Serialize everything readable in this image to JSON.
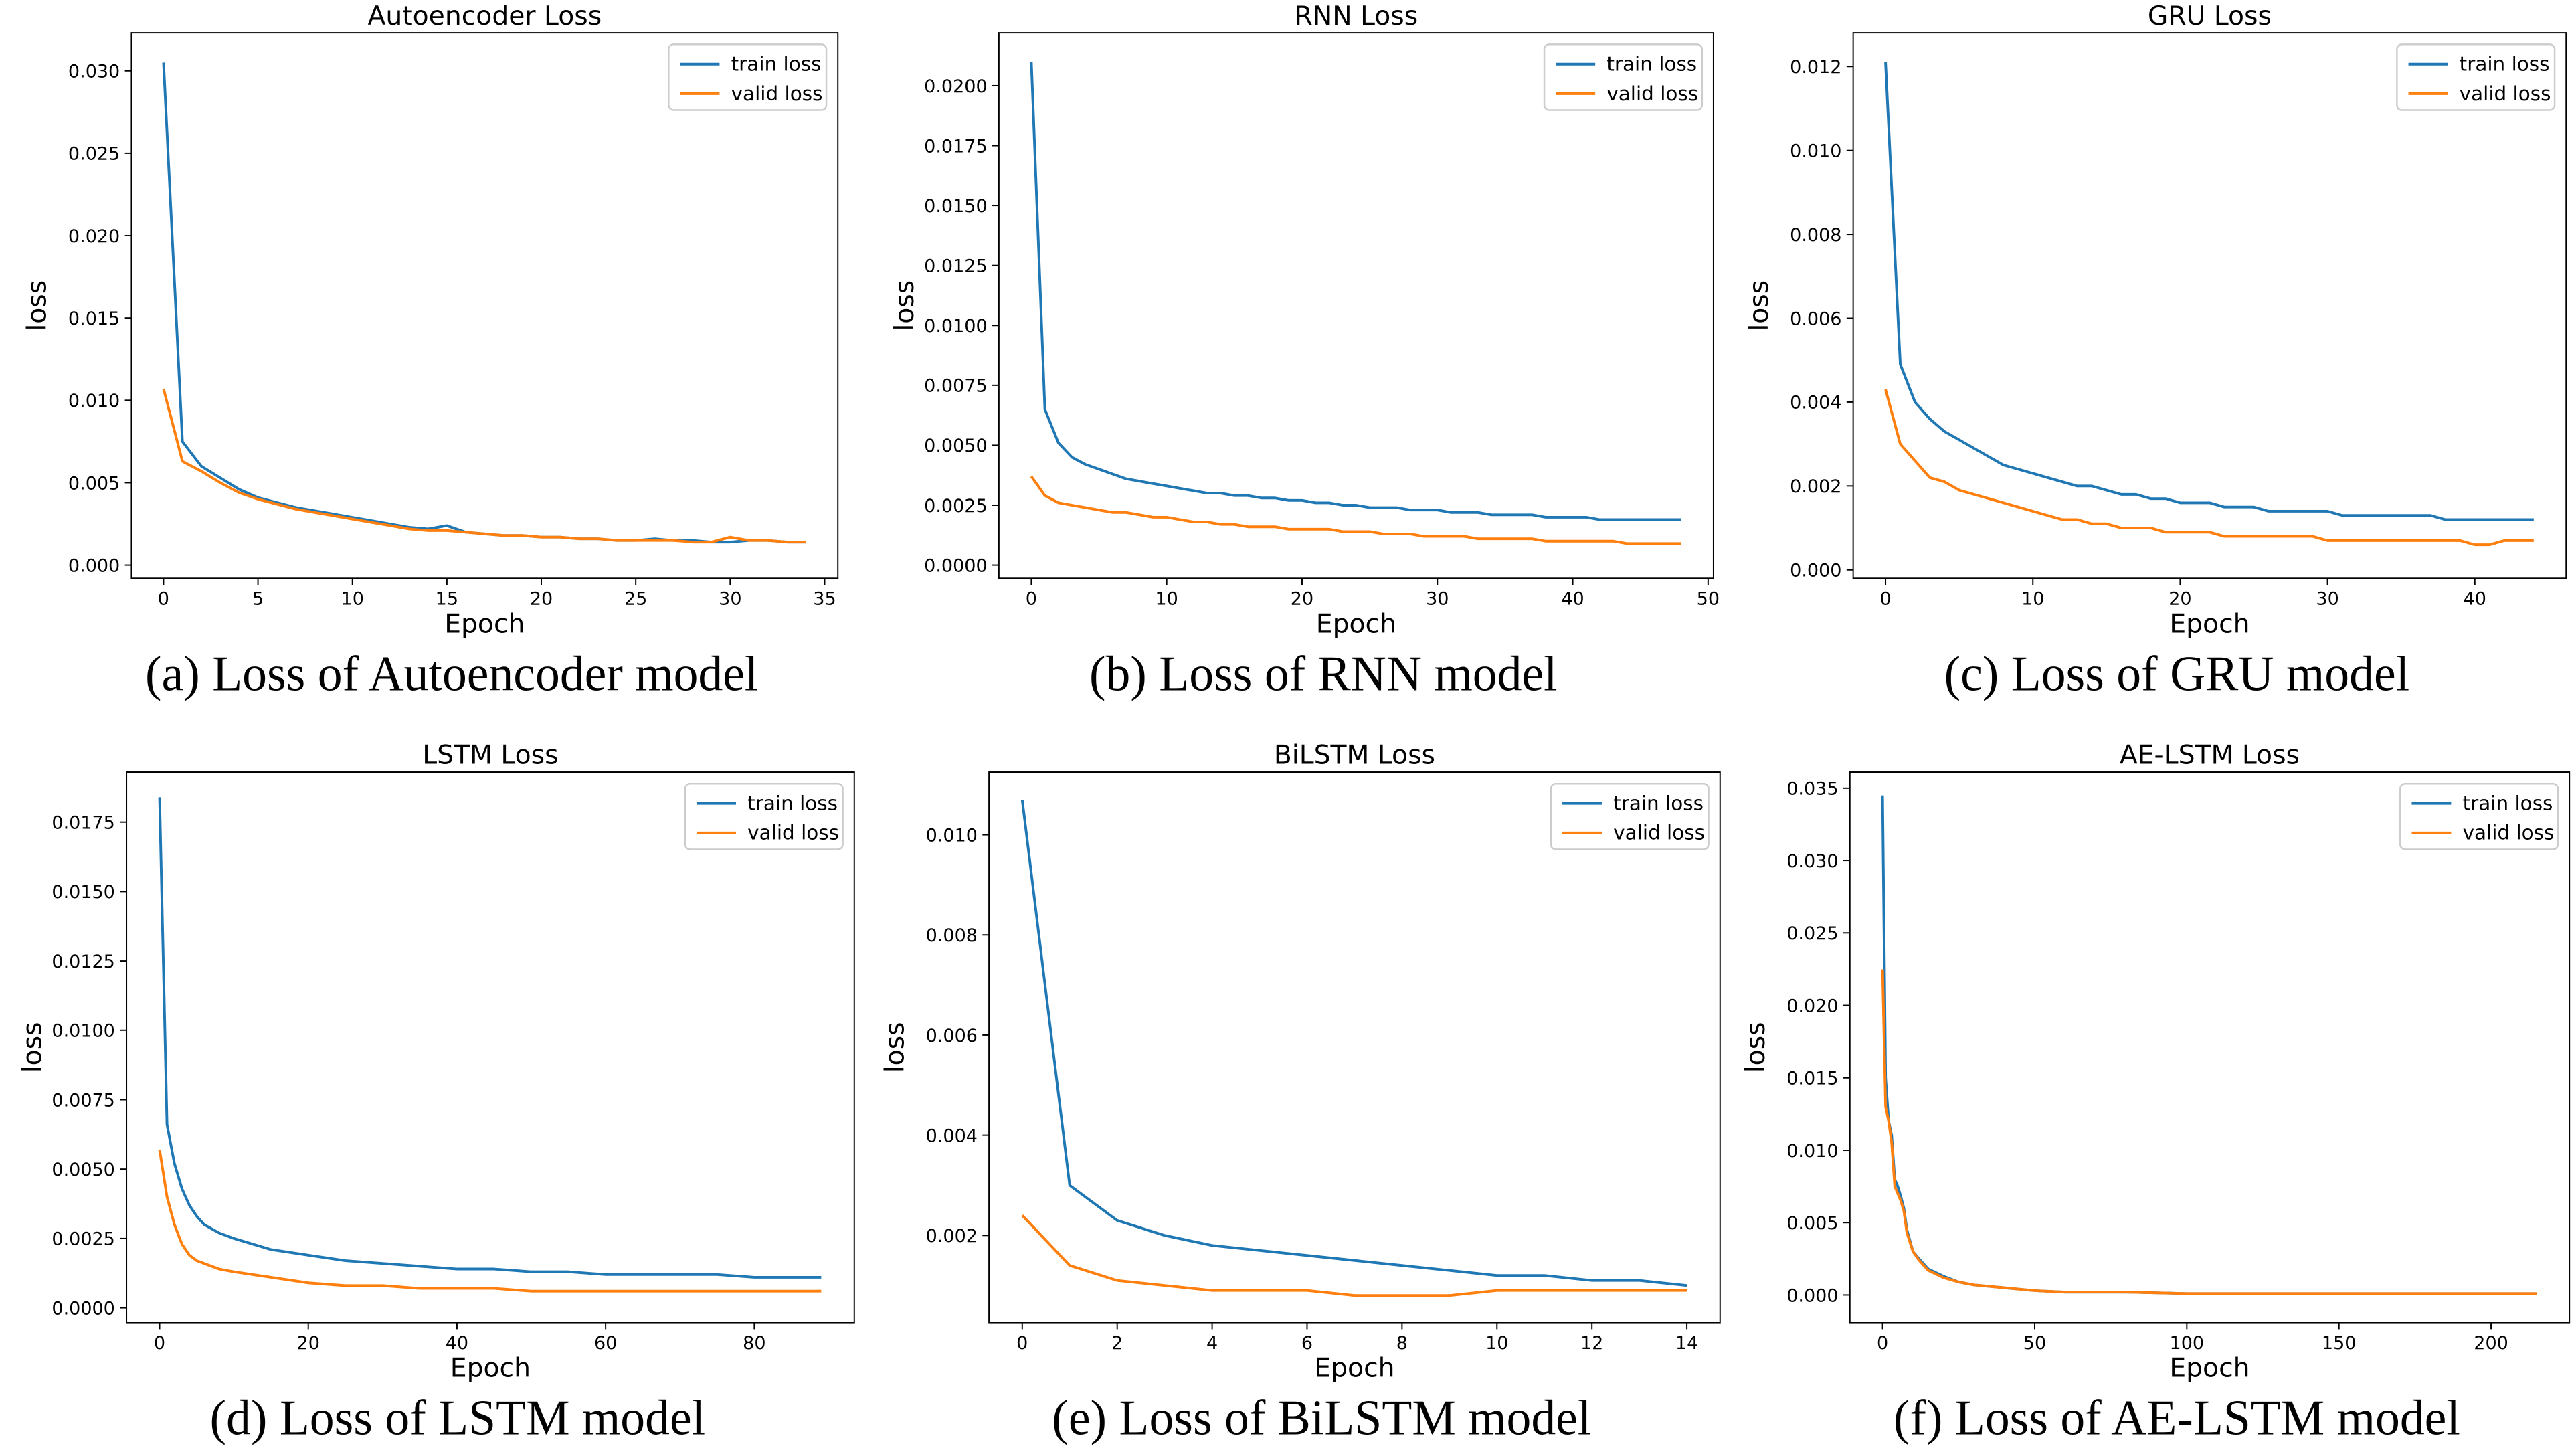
{
  "chart_data": [
    {
      "type": "line",
      "title": "Autoencoder Loss",
      "caption": "(a) Loss of Autoencoder model",
      "xlabel": "Epoch",
      "ylabel": "loss",
      "legend": "upper right",
      "grid": false,
      "x": [
        0,
        1,
        2,
        3,
        4,
        5,
        6,
        7,
        8,
        9,
        10,
        11,
        12,
        13,
        14,
        15,
        16,
        17,
        18,
        19,
        20,
        21,
        22,
        23,
        24,
        25,
        26,
        27,
        28,
        29,
        30,
        31,
        32,
        33,
        34
      ],
      "series": [
        {
          "name": "train loss",
          "color": "#1f77b4",
          "values": [
            0.0305,
            0.0075,
            0.006,
            0.0053,
            0.0046,
            0.0041,
            0.0038,
            0.0035,
            0.0033,
            0.0031,
            0.0029,
            0.0027,
            0.0025,
            0.0023,
            0.0022,
            0.0024,
            0.002,
            0.0019,
            0.0018,
            0.0018,
            0.0017,
            0.0017,
            0.0016,
            0.0016,
            0.0015,
            0.0015,
            0.0016,
            0.0015,
            0.0015,
            0.0014,
            0.0014,
            0.0015,
            0.0015,
            0.0014,
            0.0014
          ]
        },
        {
          "name": "valid loss",
          "color": "#ff7f0e",
          "values": [
            0.0107,
            0.0063,
            0.0057,
            0.005,
            0.0044,
            0.004,
            0.0037,
            0.0034,
            0.0032,
            0.003,
            0.0028,
            0.0026,
            0.0024,
            0.0022,
            0.0021,
            0.0021,
            0.002,
            0.0019,
            0.0018,
            0.0018,
            0.0017,
            0.0017,
            0.0016,
            0.0016,
            0.0015,
            0.0015,
            0.0015,
            0.0015,
            0.0014,
            0.0014,
            0.0017,
            0.0015,
            0.0015,
            0.0014,
            0.0014
          ]
        }
      ],
      "xlim": [
        -1.7,
        35.7
      ],
      "xticks": [
        0,
        5,
        10,
        15,
        20,
        25,
        30,
        35
      ],
      "ylim": [
        -0.0008,
        0.0323
      ],
      "yticks": [
        {
          "value": 0,
          "label": "0.000"
        },
        {
          "value": 0.005,
          "label": "0.005"
        },
        {
          "value": 0.01,
          "label": "0.010"
        },
        {
          "value": 0.015,
          "label": "0.015"
        },
        {
          "value": 0.02,
          "label": "0.020"
        },
        {
          "value": 0.025,
          "label": "0.025"
        },
        {
          "value": 0.03,
          "label": "0.030"
        }
      ]
    },
    {
      "type": "line",
      "title": "RNN Loss",
      "caption": "(b) Loss of RNN model",
      "xlabel": "Epoch",
      "ylabel": "loss",
      "legend": "upper right",
      "grid": false,
      "x": [
        0,
        1,
        2,
        3,
        4,
        5,
        6,
        7,
        8,
        9,
        10,
        11,
        12,
        13,
        14,
        15,
        16,
        17,
        18,
        19,
        20,
        21,
        22,
        23,
        24,
        25,
        26,
        27,
        28,
        29,
        30,
        31,
        32,
        33,
        34,
        35,
        36,
        37,
        38,
        39,
        40,
        41,
        42,
        43,
        44,
        45,
        46,
        47,
        48
      ],
      "series": [
        {
          "name": "train loss",
          "color": "#1f77b4",
          "values": [
            0.021,
            0.0065,
            0.0051,
            0.0045,
            0.0042,
            0.004,
            0.0038,
            0.0036,
            0.0035,
            0.0034,
            0.0033,
            0.0032,
            0.0031,
            0.003,
            0.003,
            0.0029,
            0.0029,
            0.0028,
            0.0028,
            0.0027,
            0.0027,
            0.0026,
            0.0026,
            0.0025,
            0.0025,
            0.0024,
            0.0024,
            0.0024,
            0.0023,
            0.0023,
            0.0023,
            0.0022,
            0.0022,
            0.0022,
            0.0021,
            0.0021,
            0.0021,
            0.0021,
            0.002,
            0.002,
            0.002,
            0.002,
            0.0019,
            0.0019,
            0.0019,
            0.0019,
            0.0019,
            0.0019,
            0.0019
          ]
        },
        {
          "name": "valid loss",
          "color": "#ff7f0e",
          "values": [
            0.0037,
            0.0029,
            0.0026,
            0.0025,
            0.0024,
            0.0023,
            0.0022,
            0.0022,
            0.0021,
            0.002,
            0.002,
            0.0019,
            0.0018,
            0.0018,
            0.0017,
            0.0017,
            0.0016,
            0.0016,
            0.0016,
            0.0015,
            0.0015,
            0.0015,
            0.0015,
            0.0014,
            0.0014,
            0.0014,
            0.0013,
            0.0013,
            0.0013,
            0.0012,
            0.0012,
            0.0012,
            0.0012,
            0.0011,
            0.0011,
            0.0011,
            0.0011,
            0.0011,
            0.001,
            0.001,
            0.001,
            0.001,
            0.001,
            0.001,
            0.0009,
            0.0009,
            0.0009,
            0.0009,
            0.0009
          ]
        }
      ],
      "xlim": [
        -2.4,
        50.4
      ],
      "xticks": [
        0,
        10,
        20,
        30,
        40,
        50
      ],
      "ylim": [
        -0.00055,
        0.0222
      ],
      "yticks": [
        {
          "value": 0,
          "label": "0.0000"
        },
        {
          "value": 0.0025,
          "label": "0.0025"
        },
        {
          "value": 0.005,
          "label": "0.0050"
        },
        {
          "value": 0.0075,
          "label": "0.0075"
        },
        {
          "value": 0.01,
          "label": "0.0100"
        },
        {
          "value": 0.0125,
          "label": "0.0125"
        },
        {
          "value": 0.015,
          "label": "0.0150"
        },
        {
          "value": 0.0175,
          "label": "0.0175"
        },
        {
          "value": 0.02,
          "label": "0.0200"
        }
      ]
    },
    {
      "type": "line",
      "title": "GRU Loss",
      "caption": "(c) Loss of GRU model",
      "xlabel": "Epoch",
      "ylabel": "loss",
      "legend": "upper right",
      "grid": false,
      "x": [
        0,
        1,
        2,
        3,
        4,
        5,
        6,
        7,
        8,
        9,
        10,
        11,
        12,
        13,
        14,
        15,
        16,
        17,
        18,
        19,
        20,
        21,
        22,
        23,
        24,
        25,
        26,
        27,
        28,
        29,
        30,
        31,
        32,
        33,
        34,
        35,
        36,
        37,
        38,
        39,
        40,
        41,
        42,
        43,
        44
      ],
      "series": [
        {
          "name": "train loss",
          "color": "#1f77b4",
          "values": [
            0.0121,
            0.0049,
            0.004,
            0.0036,
            0.0033,
            0.0031,
            0.0029,
            0.0027,
            0.0025,
            0.0024,
            0.0023,
            0.0022,
            0.0021,
            0.002,
            0.002,
            0.0019,
            0.0018,
            0.0018,
            0.0017,
            0.0017,
            0.0016,
            0.0016,
            0.0016,
            0.0015,
            0.0015,
            0.0015,
            0.0014,
            0.0014,
            0.0014,
            0.0014,
            0.0014,
            0.0013,
            0.0013,
            0.0013,
            0.0013,
            0.0013,
            0.0013,
            0.0013,
            0.0012,
            0.0012,
            0.0012,
            0.0012,
            0.0012,
            0.0012,
            0.0012
          ]
        },
        {
          "name": "valid loss",
          "color": "#ff7f0e",
          "values": [
            0.0043,
            0.003,
            0.0026,
            0.0022,
            0.0021,
            0.0019,
            0.0018,
            0.0017,
            0.0016,
            0.0015,
            0.0014,
            0.0013,
            0.0012,
            0.0012,
            0.0011,
            0.0011,
            0.001,
            0.001,
            0.001,
            0.0009,
            0.0009,
            0.0009,
            0.0009,
            0.0008,
            0.0008,
            0.0008,
            0.0008,
            0.0008,
            0.0008,
            0.0008,
            0.0007,
            0.0007,
            0.0007,
            0.0007,
            0.0007,
            0.0007,
            0.0007,
            0.0007,
            0.0007,
            0.0007,
            0.0006,
            0.0006,
            0.0007,
            0.0007,
            0.0007
          ]
        }
      ],
      "xlim": [
        -2.2,
        46.2
      ],
      "xticks": [
        0,
        10,
        20,
        30,
        40
      ],
      "ylim": [
        -0.0002,
        0.0128
      ],
      "yticks": [
        {
          "value": 0,
          "label": "0.000"
        },
        {
          "value": 0.002,
          "label": "0.002"
        },
        {
          "value": 0.004,
          "label": "0.004"
        },
        {
          "value": 0.006,
          "label": "0.006"
        },
        {
          "value": 0.008,
          "label": "0.008"
        },
        {
          "value": 0.01,
          "label": "0.010"
        },
        {
          "value": 0.012,
          "label": "0.012"
        }
      ]
    },
    {
      "type": "line",
      "title": "LSTM Loss",
      "caption": "(d) Loss of LSTM model",
      "xlabel": "Epoch",
      "ylabel": "loss",
      "legend": "upper right",
      "grid": false,
      "x": [
        0,
        1,
        2,
        3,
        4,
        5,
        6,
        8,
        10,
        15,
        20,
        25,
        30,
        35,
        40,
        45,
        50,
        55,
        60,
        65,
        70,
        75,
        80,
        85,
        89
      ],
      "series": [
        {
          "name": "train loss",
          "color": "#1f77b4",
          "values": [
            0.0184,
            0.0066,
            0.0052,
            0.0043,
            0.0037,
            0.0033,
            0.003,
            0.0027,
            0.0025,
            0.0021,
            0.0019,
            0.0017,
            0.0016,
            0.0015,
            0.0014,
            0.0014,
            0.0013,
            0.0013,
            0.0012,
            0.0012,
            0.0012,
            0.0012,
            0.0011,
            0.0011,
            0.0011
          ]
        },
        {
          "name": "valid loss",
          "color": "#ff7f0e",
          "values": [
            0.0057,
            0.004,
            0.003,
            0.0023,
            0.0019,
            0.0017,
            0.0016,
            0.0014,
            0.0013,
            0.0011,
            0.0009,
            0.0008,
            0.0008,
            0.0007,
            0.0007,
            0.0007,
            0.0006,
            0.0006,
            0.0006,
            0.0006,
            0.0006,
            0.0006,
            0.0006,
            0.0006,
            0.0006
          ]
        }
      ],
      "xlim": [
        -4.45,
        93.45
      ],
      "xticks": [
        0,
        20,
        40,
        60,
        80
      ],
      "ylim": [
        -0.00053,
        0.0193
      ],
      "yticks": [
        {
          "value": 0,
          "label": "0.0000"
        },
        {
          "value": 0.0025,
          "label": "0.0025"
        },
        {
          "value": 0.005,
          "label": "0.0050"
        },
        {
          "value": 0.0075,
          "label": "0.0075"
        },
        {
          "value": 0.01,
          "label": "0.0100"
        },
        {
          "value": 0.0125,
          "label": "0.0125"
        },
        {
          "value": 0.015,
          "label": "0.0150"
        },
        {
          "value": 0.0175,
          "label": "0.0175"
        }
      ]
    },
    {
      "type": "line",
      "title": "BiLSTM Loss",
      "caption": "(e) Loss of BiLSTM model",
      "xlabel": "Epoch",
      "ylabel": "loss",
      "legend": "upper right",
      "grid": false,
      "x": [
        0,
        1,
        2,
        3,
        4,
        5,
        6,
        7,
        8,
        9,
        10,
        11,
        12,
        13,
        14
      ],
      "series": [
        {
          "name": "train loss",
          "color": "#1f77b4",
          "values": [
            0.0107,
            0.003,
            0.0023,
            0.002,
            0.0018,
            0.0017,
            0.0016,
            0.0015,
            0.0014,
            0.0013,
            0.0012,
            0.0012,
            0.0011,
            0.0011,
            0.001
          ]
        },
        {
          "name": "valid loss",
          "color": "#ff7f0e",
          "values": [
            0.0024,
            0.0014,
            0.0011,
            0.001,
            0.0009,
            0.0009,
            0.0009,
            0.0008,
            0.0008,
            0.0008,
            0.0009,
            0.0009,
            0.0009,
            0.0009,
            0.0009
          ]
        }
      ],
      "xlim": [
        -0.7,
        14.7
      ],
      "xticks": [
        0,
        2,
        4,
        6,
        8,
        10,
        12,
        14
      ],
      "ylim": [
        0.00026,
        0.01125
      ],
      "yticks": [
        {
          "value": 0.002,
          "label": "0.002"
        },
        {
          "value": 0.004,
          "label": "0.004"
        },
        {
          "value": 0.006,
          "label": "0.006"
        },
        {
          "value": 0.008,
          "label": "0.008"
        },
        {
          "value": 0.01,
          "label": "0.010"
        }
      ]
    },
    {
      "type": "line",
      "title": "AE-LSTM Loss",
      "caption": "(f) Loss of AE-LSTM model",
      "xlabel": "Epoch",
      "ylabel": "loss",
      "legend": "upper right",
      "grid": false,
      "x": [
        0,
        1,
        2,
        3,
        4,
        5,
        6,
        7,
        8,
        10,
        12,
        15,
        20,
        25,
        30,
        40,
        50,
        60,
        80,
        100,
        125,
        150,
        175,
        200,
        215
      ],
      "series": [
        {
          "name": "train loss",
          "color": "#1f77b4",
          "values": [
            0.0345,
            0.015,
            0.012,
            0.011,
            0.008,
            0.0075,
            0.0068,
            0.006,
            0.0045,
            0.003,
            0.0025,
            0.0018,
            0.0013,
            0.0009,
            0.0007,
            0.0005,
            0.0003,
            0.0002,
            0.0002,
            0.0001,
            0.0001,
            0.0001,
            0.0001,
            0.0001,
            0.0001
          ]
        },
        {
          "name": "valid loss",
          "color": "#ff7f0e",
          "values": [
            0.0225,
            0.013,
            0.012,
            0.0105,
            0.0075,
            0.007,
            0.0065,
            0.0058,
            0.0043,
            0.003,
            0.0024,
            0.0017,
            0.0012,
            0.0009,
            0.0007,
            0.0005,
            0.0003,
            0.0002,
            0.0002,
            0.0001,
            0.0001,
            0.0001,
            0.0001,
            0.0001,
            0.0001
          ]
        }
      ],
      "xlim": [
        -10.75,
        225.75
      ],
      "xticks": [
        0,
        50,
        100,
        150,
        200
      ],
      "ylim": [
        -0.0019,
        0.0361
      ],
      "yticks": [
        {
          "value": 0,
          "label": "0.000"
        },
        {
          "value": 0.005,
          "label": "0.005"
        },
        {
          "value": 0.01,
          "label": "0.010"
        },
        {
          "value": 0.015,
          "label": "0.015"
        },
        {
          "value": 0.02,
          "label": "0.020"
        },
        {
          "value": 0.025,
          "label": "0.025"
        },
        {
          "value": 0.03,
          "label": "0.030"
        },
        {
          "value": 0.035,
          "label": "0.035"
        }
      ]
    }
  ]
}
